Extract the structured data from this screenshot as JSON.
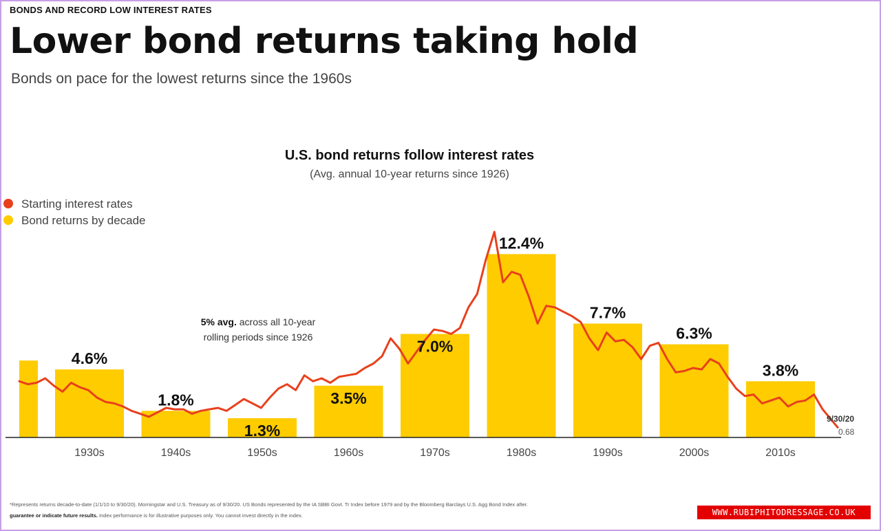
{
  "header": {
    "kicker": "BONDS AND RECORD LOW INTEREST RATES",
    "title": "Lower bond returns taking hold",
    "subtitle": "Bonds on pace for the lowest returns since the 1960s"
  },
  "footer": {
    "line1": "*Represents returns decade-to-date (1/1/10 to 9/30/20). Morningstar and U.S. Treasury as of 9/30/20. US Bonds represented by the IA SBBI Govt. Tr Index before 1979 and by the Bloomberg Barclays U.S. Agg Bond Index after.",
    "line2_bold": "guarantee or indicate future results.",
    "line2_rest": " Index performance is for illustrative purposes only. You cannot invest directly in the index."
  },
  "watermark": "WWW.RUBIPHITODRESSAGE.CO.UK",
  "chart_data": {
    "type": "bar",
    "title": "U.S. bond returns follow interest rates",
    "subtitle": "(Avg. annual 10-year returns since 1926)",
    "legend": [
      {
        "label": "Starting interest rates",
        "color": "#e8401c",
        "kind": "line"
      },
      {
        "label": "Bond returns by decade",
        "color": "#ffcc00",
        "kind": "bar"
      }
    ],
    "legend_position": "top-left",
    "categories": [
      "1930s",
      "1940s",
      "1950s",
      "1960s",
      "1970s",
      "1980s",
      "1990s",
      "2000s",
      "2010s"
    ],
    "partial_bar": {
      "value": 5.2
    },
    "series": [
      {
        "name": "Bond returns by decade",
        "values": [
          4.6,
          1.8,
          1.3,
          3.5,
          7.0,
          12.4,
          7.7,
          6.3,
          3.8
        ],
        "labels": [
          "4.6%",
          "1.8%",
          "1.3%",
          "3.5%",
          "7.0%",
          "12.4%",
          "7.7%",
          "6.3%",
          "3.8%"
        ],
        "color": "#ffcc00"
      },
      {
        "name": "Starting interest rates",
        "color": "#e8401c",
        "x": [
          1926,
          1927,
          1928,
          1929,
          1930,
          1931,
          1932,
          1933,
          1934,
          1935,
          1936,
          1937,
          1938,
          1939,
          1940,
          1941,
          1942,
          1943,
          1944,
          1945,
          1946,
          1947,
          1948,
          1949,
          1950,
          1951,
          1952,
          1953,
          1954,
          1955,
          1956,
          1957,
          1958,
          1959,
          1960,
          1961,
          1962,
          1963,
          1964,
          1965,
          1966,
          1967,
          1968,
          1969,
          1970,
          1971,
          1972,
          1973,
          1974,
          1975,
          1976,
          1977,
          1978,
          1979,
          1980,
          1981,
          1982,
          1983,
          1984,
          1985,
          1986,
          1987,
          1988,
          1989,
          1990,
          1991,
          1992,
          1993,
          1994,
          1995,
          1996,
          1997,
          1998,
          1999,
          2000,
          2001,
          2002,
          2003,
          2004,
          2005,
          2006,
          2007,
          2008,
          2009,
          2010,
          2011,
          2012,
          2013,
          2014,
          2015,
          2016,
          2017,
          2018,
          2019,
          2020.75
        ],
        "y": [
          3.8,
          3.6,
          3.7,
          4.0,
          3.5,
          3.1,
          3.7,
          3.4,
          3.2,
          2.7,
          2.4,
          2.3,
          2.1,
          1.8,
          1.6,
          1.4,
          1.7,
          2.0,
          1.9,
          1.9,
          1.6,
          1.8,
          1.9,
          2.0,
          1.8,
          2.2,
          2.6,
          2.3,
          2.0,
          2.7,
          3.3,
          3.6,
          3.2,
          4.2,
          3.8,
          4.0,
          3.7,
          4.1,
          4.2,
          4.3,
          4.7,
          5.0,
          5.5,
          6.7,
          6.0,
          5.0,
          5.8,
          6.6,
          7.3,
          7.2,
          7.0,
          7.4,
          8.8,
          9.7,
          12.0,
          13.9,
          10.5,
          11.2,
          11.0,
          9.5,
          7.7,
          8.9,
          8.8,
          8.5,
          8.2,
          7.8,
          6.7,
          5.9,
          7.1,
          6.5,
          6.6,
          6.1,
          5.3,
          6.2,
          6.4,
          5.3,
          4.4,
          4.5,
          4.7,
          4.6,
          5.3,
          5.0,
          4.1,
          3.3,
          2.8,
          2.9,
          2.3,
          2.5,
          2.7,
          2.1,
          2.4,
          2.5,
          2.9,
          1.9,
          0.68
        ]
      }
    ],
    "annotation": {
      "bold": "5% avg.",
      "text": " across all 10-year",
      "text2": "rolling periods since 1926"
    },
    "end_label": {
      "date": "9/30/20",
      "value": "0.68"
    }
  }
}
